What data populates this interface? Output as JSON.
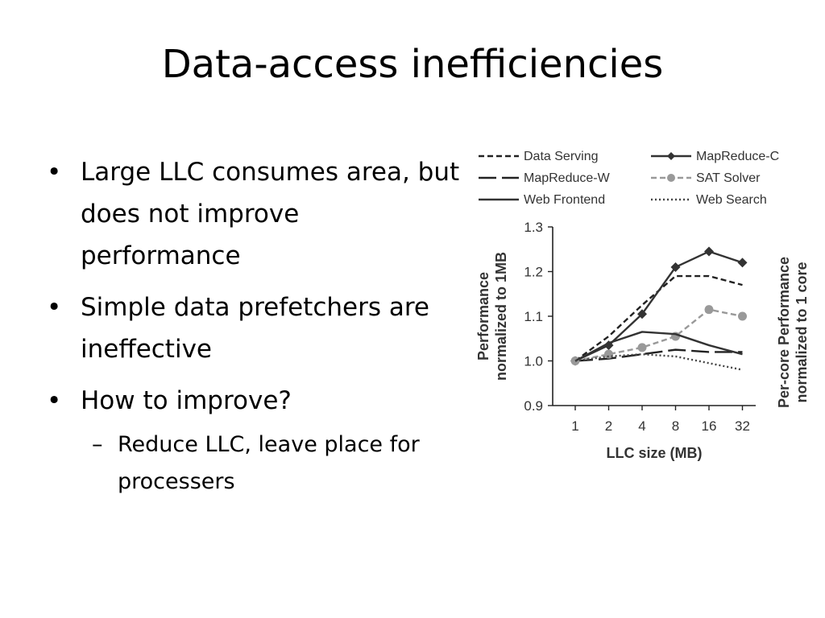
{
  "title": "Data-access inefficiencies",
  "bullets": [
    {
      "marker": "•",
      "text": "Large LLC consumes area, but does not improve performance"
    },
    {
      "marker": "•",
      "text": "Simple data prefetchers are ineffective"
    },
    {
      "marker": "•",
      "text": "How to improve?"
    }
  ],
  "sub_bullets": [
    {
      "marker": "–",
      "text": "Reduce LLC, leave place for processers"
    }
  ],
  "chart_data": {
    "type": "line",
    "xlabel": "LLC size (MB)",
    "ylabel_left": [
      "Performance",
      "normalized to 1MB"
    ],
    "ylabel_right": [
      "Per-core  Performance",
      "normalized to 1 core"
    ],
    "categories": [
      "1",
      "2",
      "4",
      "8",
      "16",
      "32"
    ],
    "ylim": [
      0.9,
      1.3
    ],
    "yticks": [
      "1.3",
      "1.2",
      "1.1",
      "1.0",
      "0.9"
    ],
    "legend_position": "top",
    "series": [
      {
        "name": "Data Serving",
        "values": [
          1.0,
          1.055,
          1.125,
          1.19,
          1.19,
          1.17
        ],
        "style": "dashed",
        "color": "#222222"
      },
      {
        "name": "MapReduce-C",
        "values": [
          1.0,
          1.035,
          1.105,
          1.21,
          1.245,
          1.22
        ],
        "style": "solid-diamond",
        "color": "#333333"
      },
      {
        "name": "MapReduce-W",
        "values": [
          1.0,
          1.005,
          1.015,
          1.025,
          1.02,
          1.02
        ],
        "style": "longdash",
        "color": "#222222"
      },
      {
        "name": "SAT Solver",
        "values": [
          1.0,
          1.015,
          1.03,
          1.055,
          1.115,
          1.1
        ],
        "style": "dashed-circle",
        "color": "#999999"
      },
      {
        "name": "Web Frontend",
        "values": [
          1.0,
          1.04,
          1.065,
          1.06,
          1.035,
          1.015
        ],
        "style": "solid",
        "color": "#333333"
      },
      {
        "name": "Web Search",
        "values": [
          1.0,
          1.01,
          1.015,
          1.01,
          0.995,
          0.98
        ],
        "style": "dotted",
        "color": "#444444"
      }
    ]
  }
}
